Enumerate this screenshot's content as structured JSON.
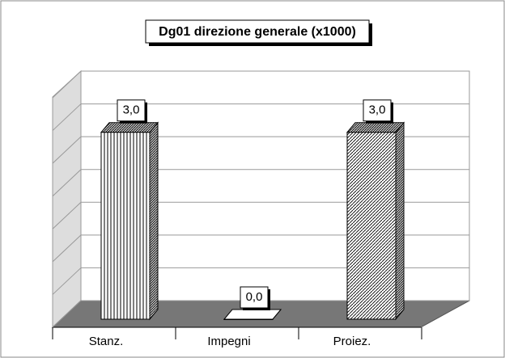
{
  "chart_data": {
    "type": "bar3d",
    "title": "Dg01 direzione generale (x1000)",
    "categories": [
      "Stanz.",
      "Impegni",
      "Proiez."
    ],
    "values": [
      3,
      0,
      3
    ],
    "value_labels": [
      "3,0",
      "0,0",
      "3,0"
    ],
    "ylim": [
      0,
      3.5
    ],
    "yticks": [
      0,
      0.5,
      1,
      1.5,
      2,
      2.5,
      3,
      3.5
    ],
    "grid": true
  }
}
